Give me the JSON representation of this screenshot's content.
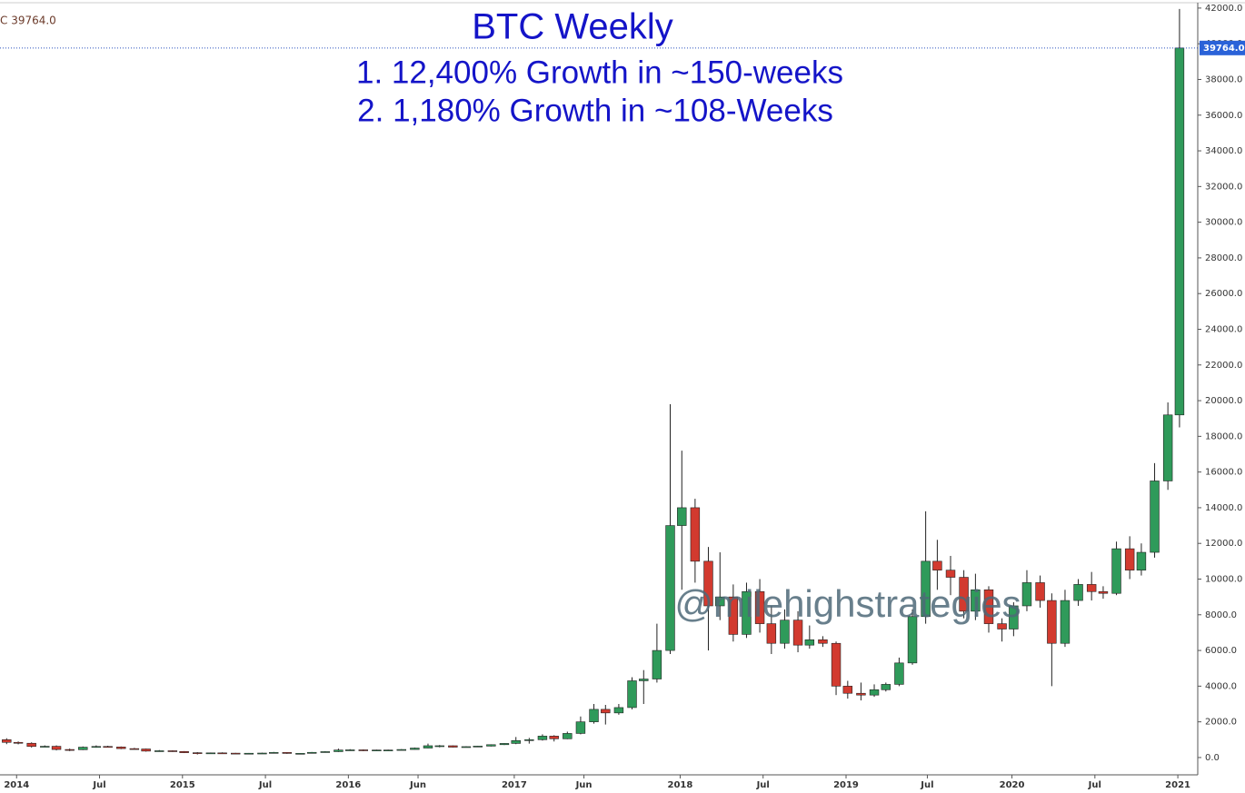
{
  "chart_data": {
    "type": "candlestick",
    "title": "BTC Weekly",
    "subtitle": [
      "1. 12,400% Growth in ~150-weeks",
      "2. 1,180% Growth in ~108-Weeks"
    ],
    "annotations": [
      "@milehighstrategies"
    ],
    "header_text": "C 39764.0",
    "last_price": {
      "value": 39764,
      "label": "39764.0"
    },
    "up_color": "#2f9a5a",
    "down_color": "#d23a2f",
    "x": [
      2013.86,
      2013.94,
      2014.01,
      2014.09,
      2014.17,
      2014.24,
      2014.32,
      2014.4,
      2014.48,
      2014.55,
      2014.63,
      2014.71,
      2014.78,
      2014.86,
      2014.94,
      2015.01,
      2015.09,
      2015.17,
      2015.24,
      2015.32,
      2015.4,
      2015.48,
      2015.55,
      2015.63,
      2015.71,
      2015.78,
      2015.86,
      2015.94,
      2016.01,
      2016.09,
      2016.17,
      2016.24,
      2016.32,
      2016.4,
      2016.48,
      2016.55,
      2016.63,
      2016.71,
      2016.78,
      2016.86,
      2016.94,
      2017.01,
      2017.09,
      2017.17,
      2017.24,
      2017.32,
      2017.4,
      2017.48,
      2017.55,
      2017.63,
      2017.71,
      2017.78,
      2017.86,
      2017.94,
      2018.01,
      2018.09,
      2018.17,
      2018.24,
      2018.32,
      2018.4,
      2018.48,
      2018.55,
      2018.63,
      2018.71,
      2018.78,
      2018.86,
      2018.94,
      2019.01,
      2019.09,
      2019.17,
      2019.24,
      2019.32,
      2019.4,
      2019.48,
      2019.55,
      2019.63,
      2019.71,
      2019.78,
      2019.86,
      2019.94,
      2020.01,
      2020.09,
      2020.17,
      2020.24,
      2020.32,
      2020.4,
      2020.48,
      2020.55,
      2020.63,
      2020.71,
      2020.78,
      2020.86,
      2020.94,
      2021.01
    ],
    "open": [
      900,
      1000,
      850,
      800,
      620,
      630,
      450,
      440,
      580,
      620,
      590,
      500,
      480,
      360,
      380,
      340,
      270,
      230,
      260,
      245,
      230,
      240,
      250,
      285,
      230,
      235,
      290,
      330,
      420,
      430,
      380,
      420,
      420,
      450,
      530,
      660,
      660,
      580,
      610,
      640,
      720,
      790,
      950,
      1000,
      1200,
      1050,
      1350,
      2000,
      2700,
      2500,
      2800,
      4300,
      4400,
      6000,
      13000,
      14000,
      11000,
      8500,
      9000,
      6900,
      9300,
      7500,
      6400,
      7700,
      6300,
      6600,
      6400,
      4000,
      3600,
      3500,
      3800,
      4100,
      5300,
      7900,
      11000,
      10500,
      10100,
      8200,
      9400,
      7500,
      7200,
      8500,
      9800,
      8800,
      6400,
      8800,
      9700,
      9300,
      9200,
      11700,
      10500,
      11500,
      15500,
      19200
    ],
    "high": [
      1150,
      1080,
      900,
      850,
      680,
      680,
      500,
      620,
      680,
      660,
      620,
      540,
      500,
      420,
      400,
      360,
      300,
      280,
      290,
      260,
      255,
      270,
      315,
      300,
      250,
      310,
      350,
      500,
      470,
      450,
      440,
      440,
      470,
      560,
      780,
      700,
      680,
      630,
      660,
      740,
      800,
      1150,
      1100,
      1300,
      1250,
      1450,
      2300,
      3000,
      2950,
      3000,
      4500,
      4900,
      7500,
      19800,
      17200,
      14500,
      11800,
      11500,
      9700,
      9800,
      10000,
      8500,
      8300,
      8200,
      7400,
      6800,
      6500,
      4300,
      4200,
      4100,
      4200,
      5600,
      8300,
      13800,
      12200,
      11300,
      10500,
      10300,
      9600,
      7800,
      8700,
      10500,
      10200,
      9200,
      9400,
      10000,
      10400,
      9600,
      12100,
      12400,
      12000,
      16500,
      19900,
      41950
    ],
    "low": [
      850,
      750,
      740,
      560,
      580,
      400,
      360,
      420,
      550,
      570,
      470,
      450,
      330,
      340,
      320,
      250,
      170,
      210,
      220,
      220,
      220,
      225,
      240,
      210,
      220,
      225,
      280,
      310,
      400,
      360,
      370,
      400,
      410,
      440,
      520,
      570,
      560,
      570,
      600,
      620,
      700,
      750,
      780,
      950,
      900,
      1030,
      1300,
      1900,
      1850,
      2400,
      2700,
      3000,
      4200,
      5800,
      9400,
      9800,
      6000,
      7700,
      6500,
      6700,
      7000,
      5800,
      6100,
      5900,
      6100,
      6200,
      3500,
      3300,
      3200,
      3400,
      3700,
      4000,
      5200,
      7500,
      9400,
      9100,
      7800,
      7700,
      7000,
      6500,
      6800,
      8200,
      8400,
      4000,
      6200,
      8500,
      8800,
      8900,
      9100,
      10000,
      10200,
      11200,
      15000,
      18500
    ],
    "close": [
      1000,
      850,
      800,
      620,
      630,
      450,
      440,
      580,
      620,
      590,
      500,
      480,
      360,
      380,
      340,
      270,
      230,
      260,
      245,
      230,
      240,
      250,
      285,
      230,
      235,
      290,
      330,
      420,
      430,
      380,
      420,
      420,
      450,
      530,
      660,
      660,
      580,
      610,
      640,
      720,
      790,
      950,
      1000,
      1200,
      1050,
      1350,
      2000,
      2700,
      2500,
      2800,
      4300,
      4400,
      6000,
      13000,
      14000,
      11000,
      8500,
      9000,
      6900,
      9300,
      7500,
      6400,
      7700,
      6300,
      6600,
      6400,
      4000,
      3600,
      3500,
      3800,
      4100,
      5300,
      7900,
      11000,
      10500,
      10100,
      8200,
      9400,
      7500,
      7200,
      8500,
      9800,
      8800,
      6400,
      8800,
      9700,
      9300,
      9200,
      11700,
      10500,
      11500,
      15500,
      19200,
      39764
    ],
    "xlim": [
      2013.9,
      2021.12
    ],
    "ylim": [
      -970,
      42300
    ],
    "xticks": [
      2014,
      {
        "value": 2014.5,
        "label": "Jul"
      },
      2015,
      {
        "value": 2015.5,
        "label": "Jul"
      },
      2016,
      {
        "value": 2016.42,
        "label": "Jun"
      },
      2017,
      {
        "value": 2017.42,
        "label": "Jun"
      },
      2018,
      {
        "value": 2018.5,
        "label": "Jul"
      },
      2019,
      {
        "value": 2019.49,
        "label": "Jul"
      },
      2020,
      {
        "value": 2020.5,
        "label": "Jul"
      },
      2021
    ],
    "yticks": [
      {
        "value": 0,
        "label": "0.0"
      },
      {
        "value": 2000,
        "label": "2000.0"
      },
      {
        "value": 4000,
        "label": "4000.0"
      },
      {
        "value": 6000,
        "label": "6000.0"
      },
      {
        "value": 8000,
        "label": "8000.0"
      },
      {
        "value": 10000,
        "label": "10000.0"
      },
      {
        "value": 12000,
        "label": "12000.0"
      },
      {
        "value": 14000,
        "label": "14000.0"
      },
      {
        "value": 16000,
        "label": "16000.0"
      },
      {
        "value": 18000,
        "label": "18000.0"
      },
      {
        "value": 20000,
        "label": "20000.0"
      },
      {
        "value": 22000,
        "label": "22000.0"
      },
      {
        "value": 24000,
        "label": "24000.0"
      },
      {
        "value": 26000,
        "label": "26000.0"
      },
      {
        "value": 28000,
        "label": "28000.0"
      },
      {
        "value": 30000,
        "label": "30000.0"
      },
      {
        "value": 32000,
        "label": "32000.0"
      },
      {
        "value": 34000,
        "label": "34000.0"
      },
      {
        "value": 36000,
        "label": "36000.0"
      },
      {
        "value": 38000,
        "label": "38000.0"
      },
      {
        "value": 40000,
        "label": "40000.0"
      },
      {
        "value": 42000,
        "label": "42000.0"
      }
    ],
    "grid": false
  }
}
